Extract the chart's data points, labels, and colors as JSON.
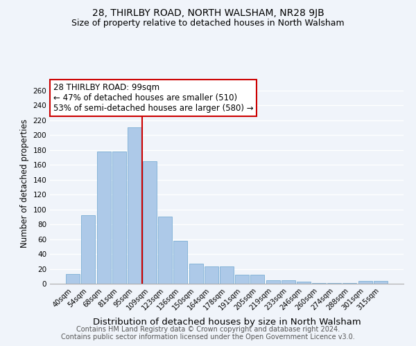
{
  "title": "28, THIRLBY ROAD, NORTH WALSHAM, NR28 9JB",
  "subtitle": "Size of property relative to detached houses in North Walsham",
  "xlabel": "Distribution of detached houses by size in North Walsham",
  "ylabel": "Number of detached properties",
  "bar_labels": [
    "40sqm",
    "54sqm",
    "68sqm",
    "81sqm",
    "95sqm",
    "109sqm",
    "123sqm",
    "136sqm",
    "150sqm",
    "164sqm",
    "178sqm",
    "191sqm",
    "205sqm",
    "219sqm",
    "233sqm",
    "246sqm",
    "260sqm",
    "274sqm",
    "288sqm",
    "301sqm",
    "315sqm"
  ],
  "bar_values": [
    13,
    92,
    178,
    178,
    210,
    165,
    90,
    58,
    27,
    23,
    23,
    12,
    12,
    5,
    5,
    3,
    1,
    1,
    1,
    4,
    4
  ],
  "bar_color": "#adc9e8",
  "bar_edge_color": "#7aadd4",
  "vline_x": 4.5,
  "vline_color": "#cc0000",
  "annotation_text": "28 THIRLBY ROAD: 99sqm\n← 47% of detached houses are smaller (510)\n53% of semi-detached houses are larger (580) →",
  "annotation_box_color": "#ffffff",
  "annotation_box_edge": "#cc0000",
  "ylim": [
    0,
    270
  ],
  "yticks": [
    0,
    20,
    40,
    60,
    80,
    100,
    120,
    140,
    160,
    180,
    200,
    220,
    240,
    260
  ],
  "footer_line1": "Contains HM Land Registry data © Crown copyright and database right 2024.",
  "footer_line2": "Contains public sector information licensed under the Open Government Licence v3.0.",
  "bg_color": "#f0f4fa",
  "plot_bg_color": "#f0f4fa",
  "title_fontsize": 10,
  "subtitle_fontsize": 9,
  "xlabel_fontsize": 9.5,
  "ylabel_fontsize": 8.5,
  "footer_fontsize": 7,
  "ann_fontsize": 8.5
}
